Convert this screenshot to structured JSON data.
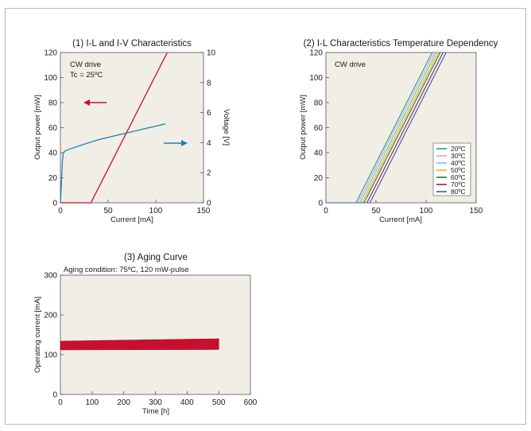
{
  "chart_data": [
    {
      "type": "line",
      "title": "(1) I-L and I-V Characteristics",
      "xlabel": "Current [mA]",
      "ylabel": "Output power [mW]",
      "y2label": "Voltage [V]",
      "xlim": [
        0,
        150
      ],
      "ylim": [
        0,
        120
      ],
      "y2lim": [
        0,
        10
      ],
      "xticks": [
        "0",
        "50",
        "100",
        "150"
      ],
      "yticks": [
        "0",
        "20",
        "40",
        "60",
        "80",
        "100",
        "120"
      ],
      "y2ticks": [
        "0",
        "2",
        "4",
        "6",
        "8",
        "10"
      ],
      "annotations": [
        "CW drive",
        "Tc = 25ºC"
      ],
      "series": [
        {
          "name": "Output power",
          "axis": "left",
          "color": "#c8102e",
          "x": [
            0,
            32,
            112
          ],
          "y": [
            0,
            0,
            120
          ]
        },
        {
          "name": "Voltage",
          "axis": "right",
          "color": "#1f7fb8",
          "x": [
            0,
            1,
            2,
            3,
            5,
            10,
            20,
            30,
            40,
            50,
            60,
            70,
            80,
            90,
            100,
            110
          ],
          "y": [
            0,
            1.3,
            2.7,
            3.3,
            3.45,
            3.58,
            3.8,
            4.0,
            4.2,
            4.35,
            4.5,
            4.65,
            4.8,
            4.95,
            5.1,
            5.25
          ]
        }
      ]
    },
    {
      "type": "line",
      "title": "(2) I-L Characteristics Temperature Dependency",
      "xlabel": "Current [mA]",
      "ylabel": "Output power [mW]",
      "xlim": [
        0,
        150
      ],
      "ylim": [
        0,
        120
      ],
      "xticks": [
        "0",
        "50",
        "100",
        "150"
      ],
      "yticks": [
        "0",
        "20",
        "40",
        "60",
        "80",
        "100",
        "120"
      ],
      "annotations": [
        "CW drive"
      ],
      "legend_position": "right",
      "series": [
        {
          "name": "20ºC",
          "color": "#17a589",
          "x": [
            0,
            30,
            106
          ],
          "y": [
            0,
            0,
            120
          ]
        },
        {
          "name": "30ºC",
          "color": "#e8a0bf",
          "x": [
            0,
            32,
            108
          ],
          "y": [
            0,
            0,
            120
          ]
        },
        {
          "name": "40ºC",
          "color": "#6fc7e8",
          "x": [
            0,
            34,
            110
          ],
          "y": [
            0,
            0,
            120
          ]
        },
        {
          "name": "50ºC",
          "color": "#f2b705",
          "x": [
            0,
            36,
            112
          ],
          "y": [
            0,
            0,
            120
          ]
        },
        {
          "name": "60ºC",
          "color": "#1b7a3d",
          "x": [
            0,
            38,
            114
          ],
          "y": [
            0,
            0,
            120
          ]
        },
        {
          "name": "70ºC",
          "color": "#9b1a4a",
          "x": [
            0,
            41,
            117
          ],
          "y": [
            0,
            0,
            120
          ]
        },
        {
          "name": "80ºC",
          "color": "#2d5da8",
          "x": [
            0,
            44,
            120
          ],
          "y": [
            0,
            0,
            120
          ]
        }
      ]
    },
    {
      "type": "area",
      "title": "(3) Aging Curve",
      "subtitle": "Aging condition: 75ºC, 120 mW-pulse",
      "xlabel": "Time [h]",
      "ylabel": "Operating current [mA]",
      "xlim": [
        0,
        600
      ],
      "ylim": [
        0,
        300
      ],
      "xticks": [
        "0",
        "100",
        "200",
        "300",
        "400",
        "500",
        "600"
      ],
      "yticks": [
        "0",
        "100",
        "200",
        "300"
      ],
      "series": [
        {
          "name": "Operating current band",
          "color": "#c8102e",
          "x": [
            0,
            500
          ],
          "low": [
            112,
            113
          ],
          "high": [
            134,
            140
          ]
        }
      ]
    }
  ]
}
